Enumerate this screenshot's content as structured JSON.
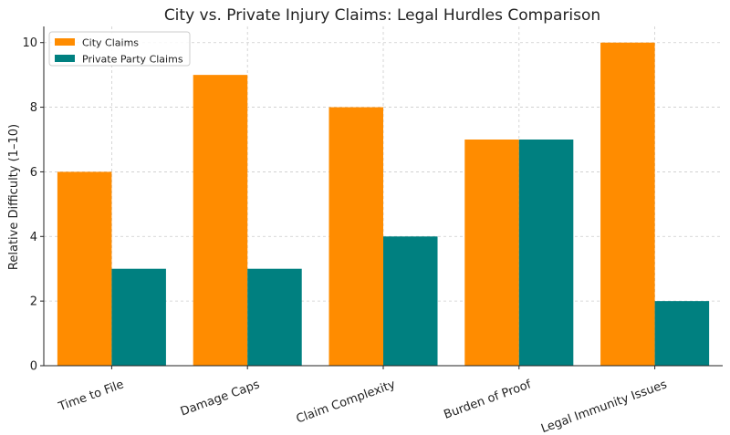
{
  "chart_data": {
    "type": "bar",
    "title": "City vs. Private Injury Claims: Legal Hurdles Comparison",
    "xlabel": "",
    "ylabel": "Relative Difficulty (1–10)",
    "categories": [
      "Time to File",
      "Damage Caps",
      "Claim Complexity",
      "Burden of Proof",
      "Legal Immunity Issues"
    ],
    "series": [
      {
        "name": "City Claims",
        "values": [
          6,
          9,
          8,
          7,
          10
        ],
        "color": "#ff8c00"
      },
      {
        "name": "Private Party Claims",
        "values": [
          3,
          3,
          4,
          7,
          2
        ],
        "color": "#008080"
      }
    ],
    "ylim": [
      0,
      10.5
    ],
    "yticks": [
      0,
      2,
      4,
      6,
      8,
      10
    ],
    "grid": true,
    "legend_position": "top-left"
  }
}
